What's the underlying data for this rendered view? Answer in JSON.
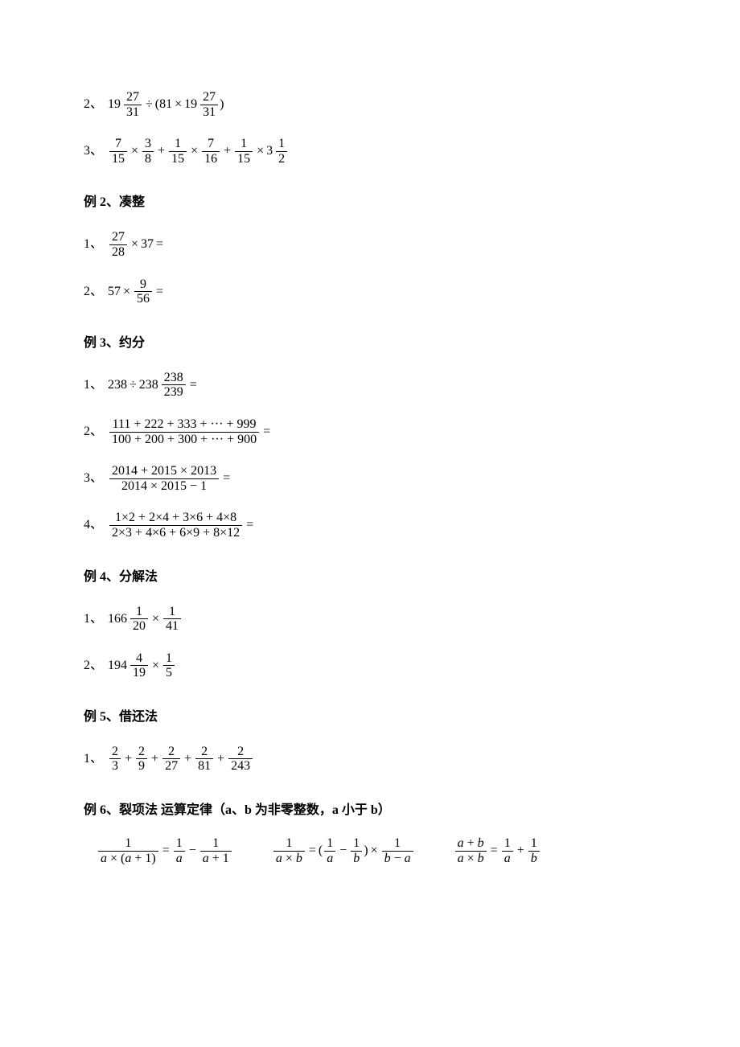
{
  "items": [
    {
      "type": "expr",
      "label": "2、",
      "inline": [
        {
          "t": "mix",
          "w": "19",
          "n": "27",
          "d": "31"
        },
        {
          "t": "op",
          "v": "÷"
        },
        {
          "t": "txt",
          "v": "(81"
        },
        {
          "t": "op",
          "v": "×"
        },
        {
          "t": "mix",
          "w": "19",
          "n": "27",
          "d": "31"
        },
        {
          "t": "txt",
          "v": ")"
        }
      ]
    },
    {
      "type": "expr",
      "label": "3、",
      "inline": [
        {
          "t": "frac",
          "n": "7",
          "d": "15"
        },
        {
          "t": "op",
          "v": "×"
        },
        {
          "t": "frac",
          "n": "3",
          "d": "8"
        },
        {
          "t": "op",
          "v": "+"
        },
        {
          "t": "frac",
          "n": "1",
          "d": "15"
        },
        {
          "t": "op",
          "v": "×"
        },
        {
          "t": "frac",
          "n": "7",
          "d": "16"
        },
        {
          "t": "op",
          "v": "+"
        },
        {
          "t": "frac",
          "n": "1",
          "d": "15"
        },
        {
          "t": "op",
          "v": "×"
        },
        {
          "t": "mix",
          "w": "3",
          "n": "1",
          "d": "2"
        }
      ]
    },
    {
      "type": "heading",
      "text": "例 2、凑整"
    },
    {
      "type": "expr",
      "label": "1、",
      "inline": [
        {
          "t": "frac",
          "n": "27",
          "d": "28"
        },
        {
          "t": "op",
          "v": "×"
        },
        {
          "t": "txt",
          "v": "37"
        },
        {
          "t": "op",
          "v": "="
        }
      ]
    },
    {
      "type": "expr",
      "label": "2、",
      "inline": [
        {
          "t": "txt",
          "v": "57"
        },
        {
          "t": "op",
          "v": "×"
        },
        {
          "t": "frac",
          "n": "9",
          "d": "56"
        },
        {
          "t": "op",
          "v": "="
        }
      ]
    },
    {
      "type": "heading",
      "text": "例 3、约分"
    },
    {
      "type": "expr",
      "label": "1、",
      "inline": [
        {
          "t": "txt",
          "v": "238"
        },
        {
          "t": "op",
          "v": "÷"
        },
        {
          "t": "mix",
          "w": "238",
          "n": "238",
          "d": "239"
        },
        {
          "t": "op",
          "v": "="
        }
      ]
    },
    {
      "type": "expr",
      "label": "2、",
      "inline": [
        {
          "t": "frac",
          "n": "111 + 222 + 333 + ··· + 999",
          "d": "100 + 200 + 300 + ··· + 900"
        },
        {
          "t": "op",
          "v": "="
        }
      ]
    },
    {
      "type": "expr",
      "label": "3、",
      "inline": [
        {
          "t": "frac",
          "n": "2014 + 2015 × 2013",
          "d": "2014 × 2015 − 1"
        },
        {
          "t": "op",
          "v": "="
        }
      ]
    },
    {
      "type": "expr",
      "label": "4、",
      "inline": [
        {
          "t": "frac",
          "n": "1×2 + 2×4 + 3×6 + 4×8",
          "d": "2×3 + 4×6 + 6×9 + 8×12"
        },
        {
          "t": "op",
          "v": "="
        }
      ]
    },
    {
      "type": "heading",
      "text": "例 4、分解法"
    },
    {
      "type": "expr",
      "label": "1、",
      "inline": [
        {
          "t": "mix",
          "w": "166",
          "n": "1",
          "d": "20"
        },
        {
          "t": "op",
          "v": "×"
        },
        {
          "t": "frac",
          "n": "1",
          "d": "41"
        }
      ]
    },
    {
      "type": "expr",
      "label": "2、",
      "inline": [
        {
          "t": "mix",
          "w": "194",
          "n": "4",
          "d": "19"
        },
        {
          "t": "op",
          "v": "×"
        },
        {
          "t": "frac",
          "n": "1",
          "d": "5"
        }
      ]
    },
    {
      "type": "heading",
      "text": "例 5、借还法"
    },
    {
      "type": "expr",
      "label": "1、",
      "inline": [
        {
          "t": "frac",
          "n": "2",
          "d": "3"
        },
        {
          "t": "op",
          "v": "+"
        },
        {
          "t": "frac",
          "n": "2",
          "d": "9"
        },
        {
          "t": "op",
          "v": "+"
        },
        {
          "t": "frac",
          "n": "2",
          "d": "27"
        },
        {
          "t": "op",
          "v": "+"
        },
        {
          "t": "frac",
          "n": "2",
          "d": "81"
        },
        {
          "t": "op",
          "v": "+"
        },
        {
          "t": "frac",
          "n": "2",
          "d": "243"
        }
      ]
    },
    {
      "type": "heading",
      "text": "例 6、裂项法   运算定律（a、b 为非零整数，a 小于 b）"
    }
  ],
  "formulas": [
    [
      {
        "t": "frac",
        "n": "1",
        "d": "<i>a</i> × (<i>a</i> + 1)"
      },
      {
        "t": "op",
        "v": "="
      },
      {
        "t": "frac",
        "n": "1",
        "d": "<i>a</i>"
      },
      {
        "t": "op",
        "v": "−"
      },
      {
        "t": "frac",
        "n": "1",
        "d": "<i>a</i> + 1"
      }
    ],
    [
      {
        "t": "frac",
        "n": "1",
        "d": "<i>a</i> × <i>b</i>"
      },
      {
        "t": "op",
        "v": "="
      },
      {
        "t": "txt",
        "v": "("
      },
      {
        "t": "frac",
        "n": "1",
        "d": "<i>a</i>"
      },
      {
        "t": "op",
        "v": "−"
      },
      {
        "t": "frac",
        "n": "1",
        "d": "<i>b</i>"
      },
      {
        "t": "txt",
        "v": ")"
      },
      {
        "t": "op",
        "v": "×"
      },
      {
        "t": "frac",
        "n": "1",
        "d": "<i>b</i> − <i>a</i>"
      }
    ],
    [
      {
        "t": "frac",
        "n": "<i>a</i> + <i>b</i>",
        "d": "<i>a</i> × <i>b</i>"
      },
      {
        "t": "op",
        "v": "="
      },
      {
        "t": "frac",
        "n": "1",
        "d": "<i>a</i>"
      },
      {
        "t": "op",
        "v": "+"
      },
      {
        "t": "frac",
        "n": "1",
        "d": "<i>b</i>"
      }
    ]
  ]
}
